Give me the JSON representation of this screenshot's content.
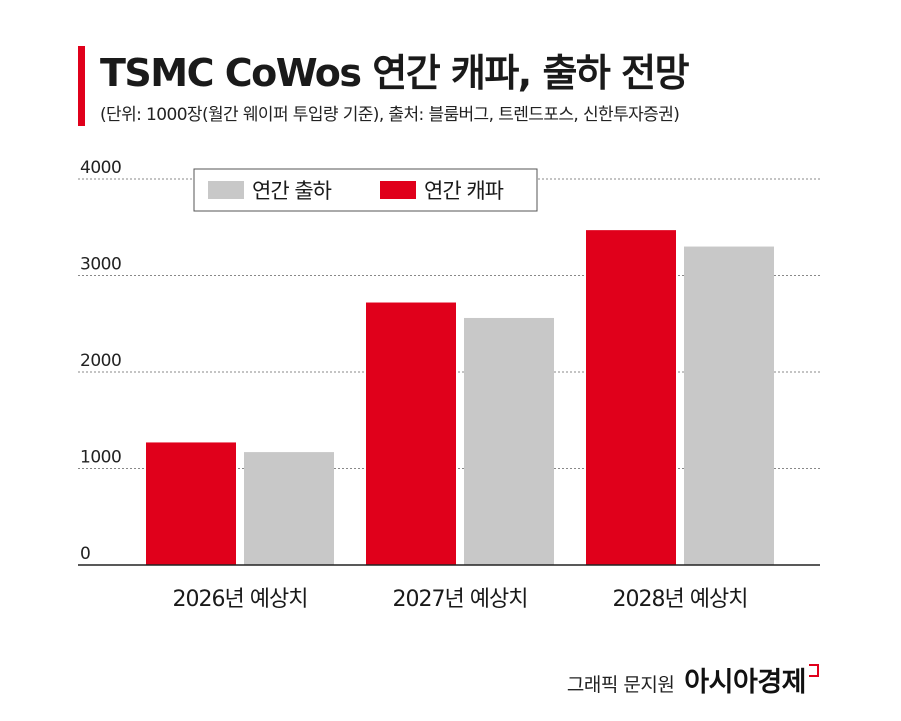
{
  "title": "TSMC CoWos 연간 캐파, 출하 전망",
  "subtitle": "(단위: 1000장(월간 웨이퍼 투입량 기준), 출처: 블룸버그, 트렌드포스, 신한투자증권)",
  "credit": {
    "author": "그래픽 문지원",
    "brand": "아시아경제"
  },
  "colors": {
    "accent": "#e0001b",
    "capacity": "#e0001b",
    "shipment": "#c8c8c8",
    "grid": "#888888"
  },
  "chart_data": {
    "type": "bar",
    "categories": [
      "2026년 예상치",
      "2027년 예상치",
      "2028년 예상치"
    ],
    "series": [
      {
        "name": "연간 캐파",
        "color": "#e0001b",
        "values": [
          1270,
          2720,
          3470
        ]
      },
      {
        "name": "연간 출하",
        "color": "#c8c8c8",
        "values": [
          1170,
          2560,
          3300
        ]
      }
    ],
    "legend": {
      "position": "top-left",
      "order": [
        "연간 출하",
        "연간 캐파"
      ]
    },
    "ylim": [
      0,
      4000
    ],
    "yticks": [
      "0",
      "1000",
      "2000",
      "3000",
      "4000"
    ],
    "grid": true
  }
}
